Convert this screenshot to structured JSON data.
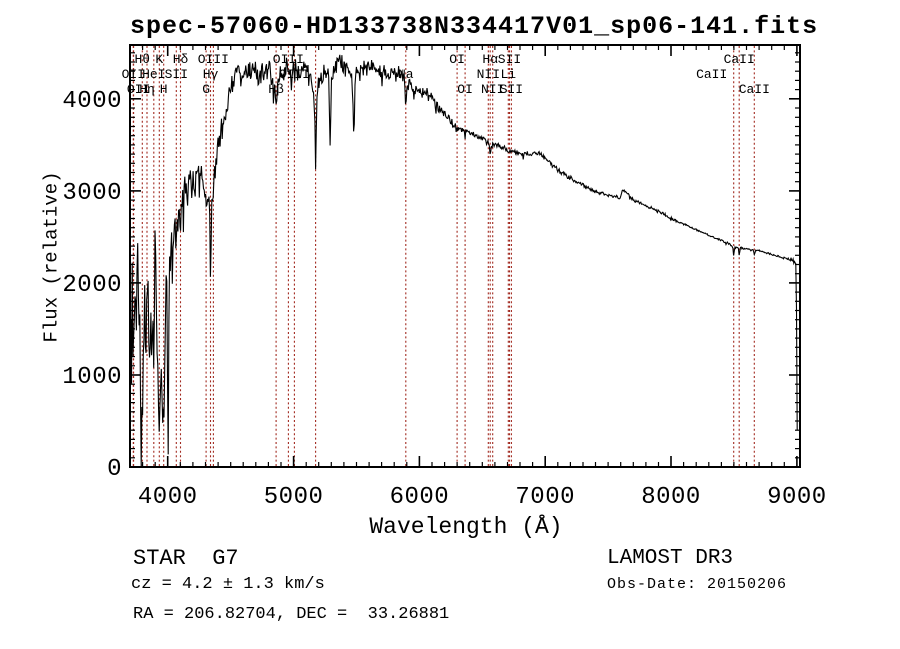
{
  "title": "spec-57060-HD133738N334417V01_sp06-141.fits",
  "colors": {
    "background": "#ffffff",
    "spectrum": "#000000",
    "axis": "#000000",
    "line_marker": "#a1281e"
  },
  "annotations": {
    "star_class": "STAR  G7",
    "cz": "cz = 4.2 ± 1.3 km/s",
    "radec": "RA = 206.82704, DEC =  33.26881",
    "survey": "LAMOST DR3",
    "obs_date": "Obs-Date: 20150206"
  },
  "chart_data": {
    "type": "line",
    "title": "spec-57060-HD133738N334417V01_sp06-141.fits",
    "xlabel": "Wavelength (Å)",
    "ylabel": "Flux (relative)",
    "xlim": [
      3700,
      9025
    ],
    "ylim": [
      0,
      4585
    ],
    "grid": false,
    "legend_position": "none",
    "x_major_ticks": [
      4000,
      5000,
      6000,
      7000,
      8000,
      9000
    ],
    "x_minor_step": 100,
    "y_major_ticks": [
      0,
      1000,
      2000,
      3000,
      4000
    ],
    "y_minor_step": 100,
    "spectral_lines": [
      {
        "label": "OII",
        "wavelength": 3726,
        "row": 2
      },
      {
        "label": "OII",
        "wavelength": 3729,
        "row": 3,
        "dx": 5
      },
      {
        "label": "Hθ",
        "wavelength": 3798,
        "row": 1
      },
      {
        "label": "Hη",
        "wavelength": 3835,
        "row": 3
      },
      {
        "label": "HeI",
        "wavelength": 3889,
        "row": 2
      },
      {
        "label": "K",
        "wavelength": 3933,
        "row": 1
      },
      {
        "label": "H",
        "wavelength": 3968,
        "row": 3
      },
      {
        "label": "SII",
        "wavelength": 4068,
        "row": 2
      },
      {
        "label": "Hδ",
        "wavelength": 4101,
        "row": 1
      },
      {
        "label": "G",
        "wavelength": 4305,
        "row": 3
      },
      {
        "label": "Hγ",
        "wavelength": 4340,
        "row": 2
      },
      {
        "label": "OIII",
        "wavelength": 4363,
        "row": 1
      },
      {
        "label": "Hβ",
        "wavelength": 4861,
        "row": 3
      },
      {
        "label": "OIII",
        "wavelength": 4959,
        "row": 1
      },
      {
        "label": "OIII",
        "wavelength": 5007,
        "row": 2
      },
      {
        "label": "",
        "wavelength": 5175,
        "row": 3
      },
      {
        "label": "Na",
        "wavelength": 5892,
        "row": 2
      },
      {
        "label": "OI",
        "wavelength": 6300,
        "row": 1
      },
      {
        "label": "OI",
        "wavelength": 6363,
        "row": 3
      },
      {
        "label": "NII",
        "wavelength": 6548,
        "row": 2
      },
      {
        "label": "Hα",
        "wavelength": 6563,
        "row": 1
      },
      {
        "label": "NII",
        "wavelength": 6583,
        "row": 3
      },
      {
        "label": "Li",
        "wavelength": 6707,
        "row": 2
      },
      {
        "label": "SII",
        "wavelength": 6716,
        "row": 1
      },
      {
        "label": "SII",
        "wavelength": 6731,
        "row": 3
      },
      {
        "label": "CaII",
        "wavelength": 8498,
        "row": 2,
        "dx": -22
      },
      {
        "label": "CaII",
        "wavelength": 8542,
        "row": 1
      },
      {
        "label": "CaII",
        "wavelength": 8662,
        "row": 3
      }
    ],
    "series": [
      {
        "name": "spectrum",
        "seed": 20150206,
        "sample_step": 5.5,
        "anchors": [
          [
            3701,
            250
          ],
          [
            3706,
            1500
          ],
          [
            3712,
            900
          ],
          [
            3718,
            1900
          ],
          [
            3724,
            1100
          ],
          [
            3730,
            2100
          ],
          [
            3736,
            1300
          ],
          [
            3742,
            2300
          ],
          [
            3750,
            1500
          ],
          [
            3758,
            2350
          ],
          [
            3766,
            1500
          ],
          [
            3774,
            2100
          ],
          [
            3782,
            700
          ],
          [
            3790,
            450
          ],
          [
            3800,
            700
          ],
          [
            3808,
            1500
          ],
          [
            3816,
            2100
          ],
          [
            3824,
            1300
          ],
          [
            3832,
            2000
          ],
          [
            3840,
            2300
          ],
          [
            3848,
            1500
          ],
          [
            3856,
            900
          ],
          [
            3864,
            1600
          ],
          [
            3872,
            1200
          ],
          [
            3880,
            1700
          ],
          [
            3889,
            1000
          ],
          [
            3898,
            2500
          ],
          [
            3906,
            1800
          ],
          [
            3914,
            1300
          ],
          [
            3922,
            900
          ],
          [
            3933,
            430
          ],
          [
            3944,
            1100
          ],
          [
            3952,
            800
          ],
          [
            3960,
            600
          ],
          [
            3970,
            520
          ],
          [
            3980,
            1400
          ],
          [
            3988,
            2200
          ],
          [
            3996,
            1600
          ],
          [
            4003,
            250
          ],
          [
            4010,
            1700
          ],
          [
            4020,
            2300
          ],
          [
            4030,
            2500
          ],
          [
            4040,
            2200
          ],
          [
            4050,
            2600
          ],
          [
            4060,
            2700
          ],
          [
            4072,
            2500
          ],
          [
            4085,
            2800
          ],
          [
            4101,
            2700
          ],
          [
            4120,
            2950
          ],
          [
            4140,
            3050
          ],
          [
            4160,
            3000
          ],
          [
            4180,
            3100
          ],
          [
            4200,
            3150
          ],
          [
            4220,
            3100
          ],
          [
            4240,
            3150
          ],
          [
            4260,
            3200
          ],
          [
            4280,
            3100
          ],
          [
            4300,
            2900
          ],
          [
            4320,
            2950
          ],
          [
            4334,
            2700
          ],
          [
            4340,
            1850
          ],
          [
            4348,
            2800
          ],
          [
            4363,
            3000
          ],
          [
            4380,
            3300
          ],
          [
            4400,
            3450
          ],
          [
            4420,
            3600
          ],
          [
            4440,
            3750
          ],
          [
            4460,
            3900
          ],
          [
            4480,
            4050
          ],
          [
            4500,
            4150
          ],
          [
            4520,
            4250
          ],
          [
            4540,
            4300
          ],
          [
            4560,
            4320
          ],
          [
            4580,
            4250
          ],
          [
            4600,
            4300
          ],
          [
            4640,
            4250
          ],
          [
            4680,
            4300
          ],
          [
            4720,
            4250
          ],
          [
            4760,
            4280
          ],
          [
            4800,
            4300
          ],
          [
            4830,
            4250
          ],
          [
            4855,
            4100
          ],
          [
            4861,
            3800
          ],
          [
            4870,
            4150
          ],
          [
            4900,
            4250
          ],
          [
            4940,
            4300
          ],
          [
            4980,
            4300
          ],
          [
            5020,
            4300
          ],
          [
            5060,
            4320
          ],
          [
            5100,
            4300
          ],
          [
            5140,
            4250
          ],
          [
            5168,
            3900
          ],
          [
            5175,
            3350
          ],
          [
            5185,
            3900
          ],
          [
            5200,
            4200
          ],
          [
            5240,
            4300
          ],
          [
            5280,
            4250
          ],
          [
            5292,
            3400
          ],
          [
            5300,
            4200
          ],
          [
            5340,
            4380
          ],
          [
            5380,
            4400
          ],
          [
            5420,
            4350
          ],
          [
            5460,
            4300
          ],
          [
            5482,
            3600
          ],
          [
            5490,
            4250
          ],
          [
            5520,
            4350
          ],
          [
            5560,
            4380
          ],
          [
            5600,
            4350
          ],
          [
            5650,
            4320
          ],
          [
            5700,
            4300
          ],
          [
            5740,
            4250
          ],
          [
            5780,
            4280
          ],
          [
            5820,
            4300
          ],
          [
            5860,
            4280
          ],
          [
            5885,
            4150
          ],
          [
            5893,
            3800
          ],
          [
            5900,
            4150
          ],
          [
            5920,
            4200
          ],
          [
            5940,
            4150
          ],
          [
            5960,
            4100
          ],
          [
            5980,
            4100
          ],
          [
            6000,
            4080
          ],
          [
            6030,
            4080
          ],
          [
            6060,
            4100
          ],
          [
            6090,
            4060
          ],
          [
            6120,
            3980
          ],
          [
            6150,
            3900
          ],
          [
            6180,
            3850
          ],
          [
            6210,
            3800
          ],
          [
            6240,
            3770
          ],
          [
            6270,
            3730
          ],
          [
            6300,
            3680
          ],
          [
            6330,
            3680
          ],
          [
            6360,
            3650
          ],
          [
            6390,
            3640
          ],
          [
            6420,
            3620
          ],
          [
            6450,
            3600
          ],
          [
            6480,
            3580
          ],
          [
            6510,
            3560
          ],
          [
            6540,
            3540
          ],
          [
            6557,
            3500
          ],
          [
            6563,
            3400
          ],
          [
            6572,
            3500
          ],
          [
            6600,
            3510
          ],
          [
            6640,
            3490
          ],
          [
            6680,
            3460
          ],
          [
            6707,
            3440
          ],
          [
            6730,
            3430
          ],
          [
            6760,
            3420
          ],
          [
            6800,
            3410
          ],
          [
            6840,
            3400
          ],
          [
            6880,
            3400
          ],
          [
            6920,
            3410
          ],
          [
            6959,
            3400
          ],
          [
            7000,
            3350
          ],
          [
            7050,
            3290
          ],
          [
            7100,
            3230
          ],
          [
            7150,
            3180
          ],
          [
            7200,
            3140
          ],
          [
            7250,
            3100
          ],
          [
            7300,
            3060
          ],
          [
            7350,
            3030
          ],
          [
            7400,
            3000
          ],
          [
            7450,
            2970
          ],
          [
            7500,
            2950
          ],
          [
            7550,
            2935
          ],
          [
            7600,
            2930
          ],
          [
            7615,
            3010
          ],
          [
            7650,
            2990
          ],
          [
            7665,
            2950
          ],
          [
            7700,
            2900
          ],
          [
            7750,
            2870
          ],
          [
            7800,
            2840
          ],
          [
            7850,
            2810
          ],
          [
            7900,
            2780
          ],
          [
            7950,
            2740
          ],
          [
            8000,
            2700
          ],
          [
            8050,
            2670
          ],
          [
            8100,
            2640
          ],
          [
            8150,
            2610
          ],
          [
            8200,
            2580
          ],
          [
            8250,
            2550
          ],
          [
            8300,
            2520
          ],
          [
            8350,
            2490
          ],
          [
            8400,
            2460
          ],
          [
            8450,
            2430
          ],
          [
            8490,
            2400
          ],
          [
            8498,
            2280
          ],
          [
            8506,
            2390
          ],
          [
            8535,
            2380
          ],
          [
            8542,
            2290
          ],
          [
            8550,
            2380
          ],
          [
            8600,
            2370
          ],
          [
            8655,
            2350
          ],
          [
            8662,
            2300
          ],
          [
            8670,
            2350
          ],
          [
            8700,
            2350
          ],
          [
            8750,
            2330
          ],
          [
            8800,
            2310
          ],
          [
            8850,
            2290
          ],
          [
            8900,
            2270
          ],
          [
            8950,
            2250
          ],
          [
            8985,
            2230
          ],
          [
            8995,
            2200
          ],
          [
            9000,
            1200
          ],
          [
            9004,
            150
          ],
          [
            9008,
            300
          ]
        ],
        "noise_profile": [
          [
            3700,
            700
          ],
          [
            4010,
            350
          ],
          [
            4100,
            280
          ],
          [
            4420,
            220
          ],
          [
            4520,
            170
          ],
          [
            4900,
            150
          ],
          [
            5400,
            130
          ],
          [
            5900,
            90
          ],
          [
            6100,
            65
          ],
          [
            6300,
            50
          ],
          [
            6600,
            38
          ],
          [
            7000,
            30
          ],
          [
            7400,
            24
          ],
          [
            7800,
            20
          ],
          [
            8300,
            16
          ],
          [
            8900,
            12
          ],
          [
            9000,
            40
          ]
        ]
      }
    ]
  }
}
